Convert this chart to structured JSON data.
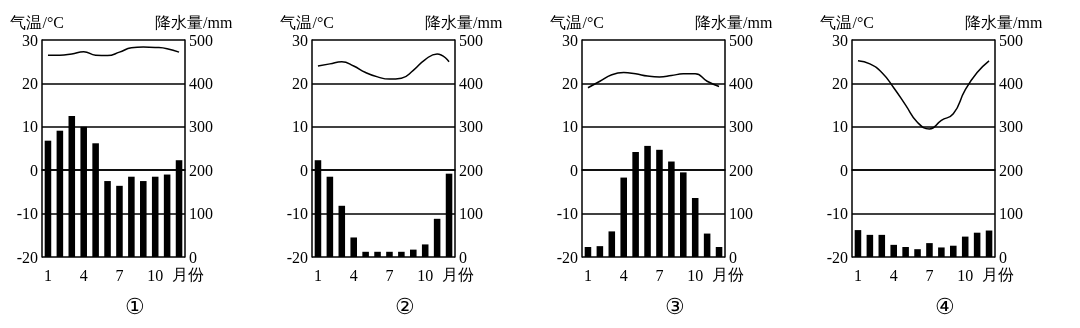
{
  "chart_data": [
    {
      "type": "bar",
      "title": "①",
      "xlabel": "月份",
      "ylabel": "气温/°C",
      "y2label": "降水量/mm",
      "categories": [
        "1",
        null,
        null,
        "4",
        null,
        null,
        "7",
        null,
        null,
        "10",
        null,
        null
      ],
      "series": [
        {
          "type": "line",
          "color": "#000000",
          "values": [
            26.5,
            26.5,
            26.8,
            27.3,
            26.5,
            26.4,
            27.2,
            28.2,
            28.4,
            28.3,
            28.0,
            27.2
          ]
        },
        {
          "axis": "y2",
          "color": "#000000",
          "values": [
            268,
            291,
            325,
            300,
            262,
            175,
            164,
            185,
            175,
            185,
            190,
            223
          ]
        }
      ],
      "ylim": [
        -20,
        30
      ],
      "yticks": [
        -20,
        -10,
        0,
        10,
        20,
        30
      ],
      "y2lim": [
        0,
        500
      ],
      "y2ticks": [
        0,
        100,
        200,
        300,
        400,
        500
      ],
      "grid": "y",
      "marker": "none"
    },
    {
      "type": "bar",
      "title": "②",
      "xlabel": "月份",
      "ylabel": "气温/°C",
      "y2label": "降水量/mm",
      "categories": [
        "1",
        null,
        null,
        "4",
        null,
        null,
        "7",
        null,
        null,
        "10",
        null,
        null
      ],
      "series": [
        {
          "type": "line",
          "color": "#000000",
          "values": [
            24,
            24.5,
            25,
            24,
            22.5,
            21.5,
            21,
            21.2,
            23,
            25.5,
            26.8,
            25
          ]
        },
        {
          "axis": "y2",
          "color": "#000000",
          "values": [
            223,
            185,
            118,
            45,
            12,
            12,
            12,
            12,
            17,
            29,
            88,
            192
          ]
        }
      ],
      "ylim": [
        -20,
        30
      ],
      "yticks": [
        -20,
        -10,
        0,
        10,
        20,
        30
      ],
      "y2lim": [
        0,
        500
      ],
      "y2ticks": [
        0,
        100,
        200,
        300,
        400,
        500
      ],
      "grid": "y",
      "marker": "none"
    },
    {
      "type": "bar",
      "title": "③",
      "xlabel": "月份",
      "ylabel": "气温/°C",
      "y2label": "降水量/mm",
      "categories": [
        "1",
        null,
        null,
        "4",
        null,
        null,
        "7",
        null,
        null,
        "10",
        null,
        null
      ],
      "series": [
        {
          "type": "line",
          "color": "#000000",
          "values": [
            19,
            20.5,
            22,
            22.5,
            22.2,
            21.7,
            21.5,
            21.8,
            22.2,
            22.2,
            20.5,
            19.3
          ]
        },
        {
          "axis": "y2",
          "color": "#000000",
          "values": [
            23,
            25,
            59,
            183,
            242,
            256,
            247,
            220,
            195,
            136,
            54,
            23
          ]
        }
      ],
      "ylim": [
        -20,
        30
      ],
      "yticks": [
        -20,
        -10,
        0,
        10,
        20,
        30
      ],
      "y2lim": [
        0,
        500
      ],
      "y2ticks": [
        0,
        100,
        200,
        300,
        400,
        500
      ],
      "grid": "y",
      "marker": "none"
    },
    {
      "type": "bar",
      "title": "④",
      "xlabel": "月份",
      "ylabel": "气温/°C",
      "y2label": "降水量/mm",
      "categories": [
        "1",
        null,
        null,
        "4",
        null,
        null,
        "7",
        null,
        null,
        "10",
        null,
        null
      ],
      "series": [
        {
          "type": "line",
          "color": "#000000",
          "values": [
            25.2,
            24.5,
            22.5,
            19,
            15,
            11,
            9.5,
            11.5,
            13,
            18.5,
            22.5,
            25.2
          ]
        },
        {
          "axis": "y2",
          "color": "#000000",
          "values": [
            62,
            51,
            51,
            28,
            23,
            18,
            32,
            22,
            26,
            47,
            56,
            61
          ]
        }
      ],
      "ylim": [
        -20,
        30
      ],
      "yticks": [
        -20,
        -10,
        0,
        10,
        20,
        30
      ],
      "y2lim": [
        0,
        500
      ],
      "y2ticks": [
        0,
        100,
        200,
        300,
        400,
        500
      ],
      "grid": "y",
      "marker": "none"
    }
  ]
}
